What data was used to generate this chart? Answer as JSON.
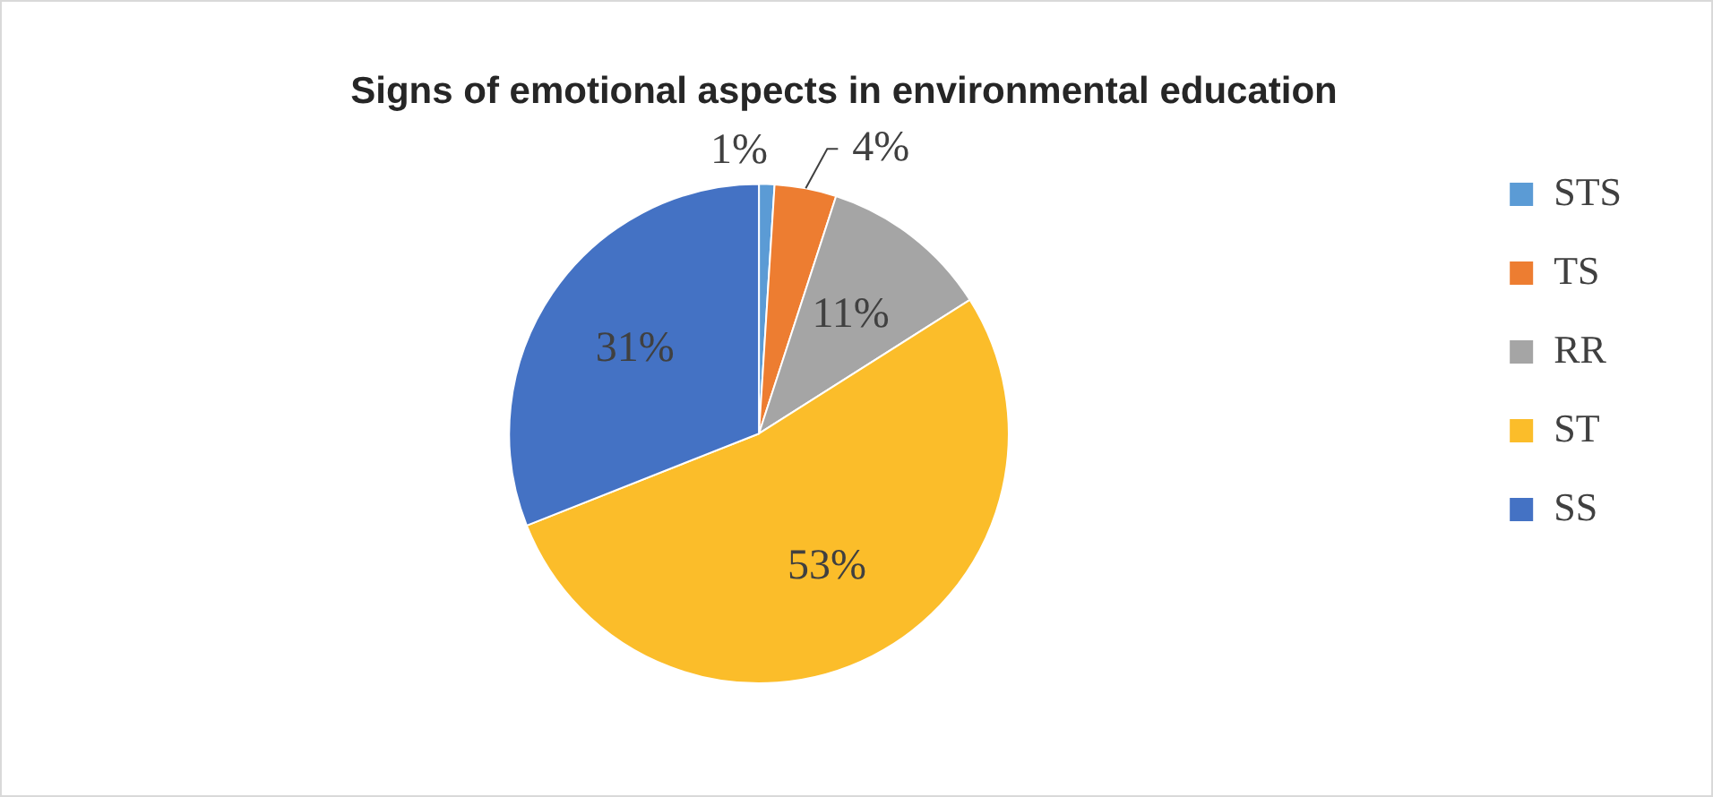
{
  "chart_data": {
    "type": "pie",
    "title": "Signs of emotional aspects in environmental education",
    "categories": [
      "STS",
      "TS",
      "RR",
      "ST",
      "SS"
    ],
    "values": [
      1,
      4,
      11,
      53,
      31
    ],
    "colors": [
      "#5b9bd5",
      "#ed7d31",
      "#a5a5a5",
      "#fbbd2a",
      "#4472c4"
    ],
    "value_labels": [
      "1%",
      "4%",
      "11%",
      "53%",
      "31%"
    ],
    "legend": "right"
  }
}
